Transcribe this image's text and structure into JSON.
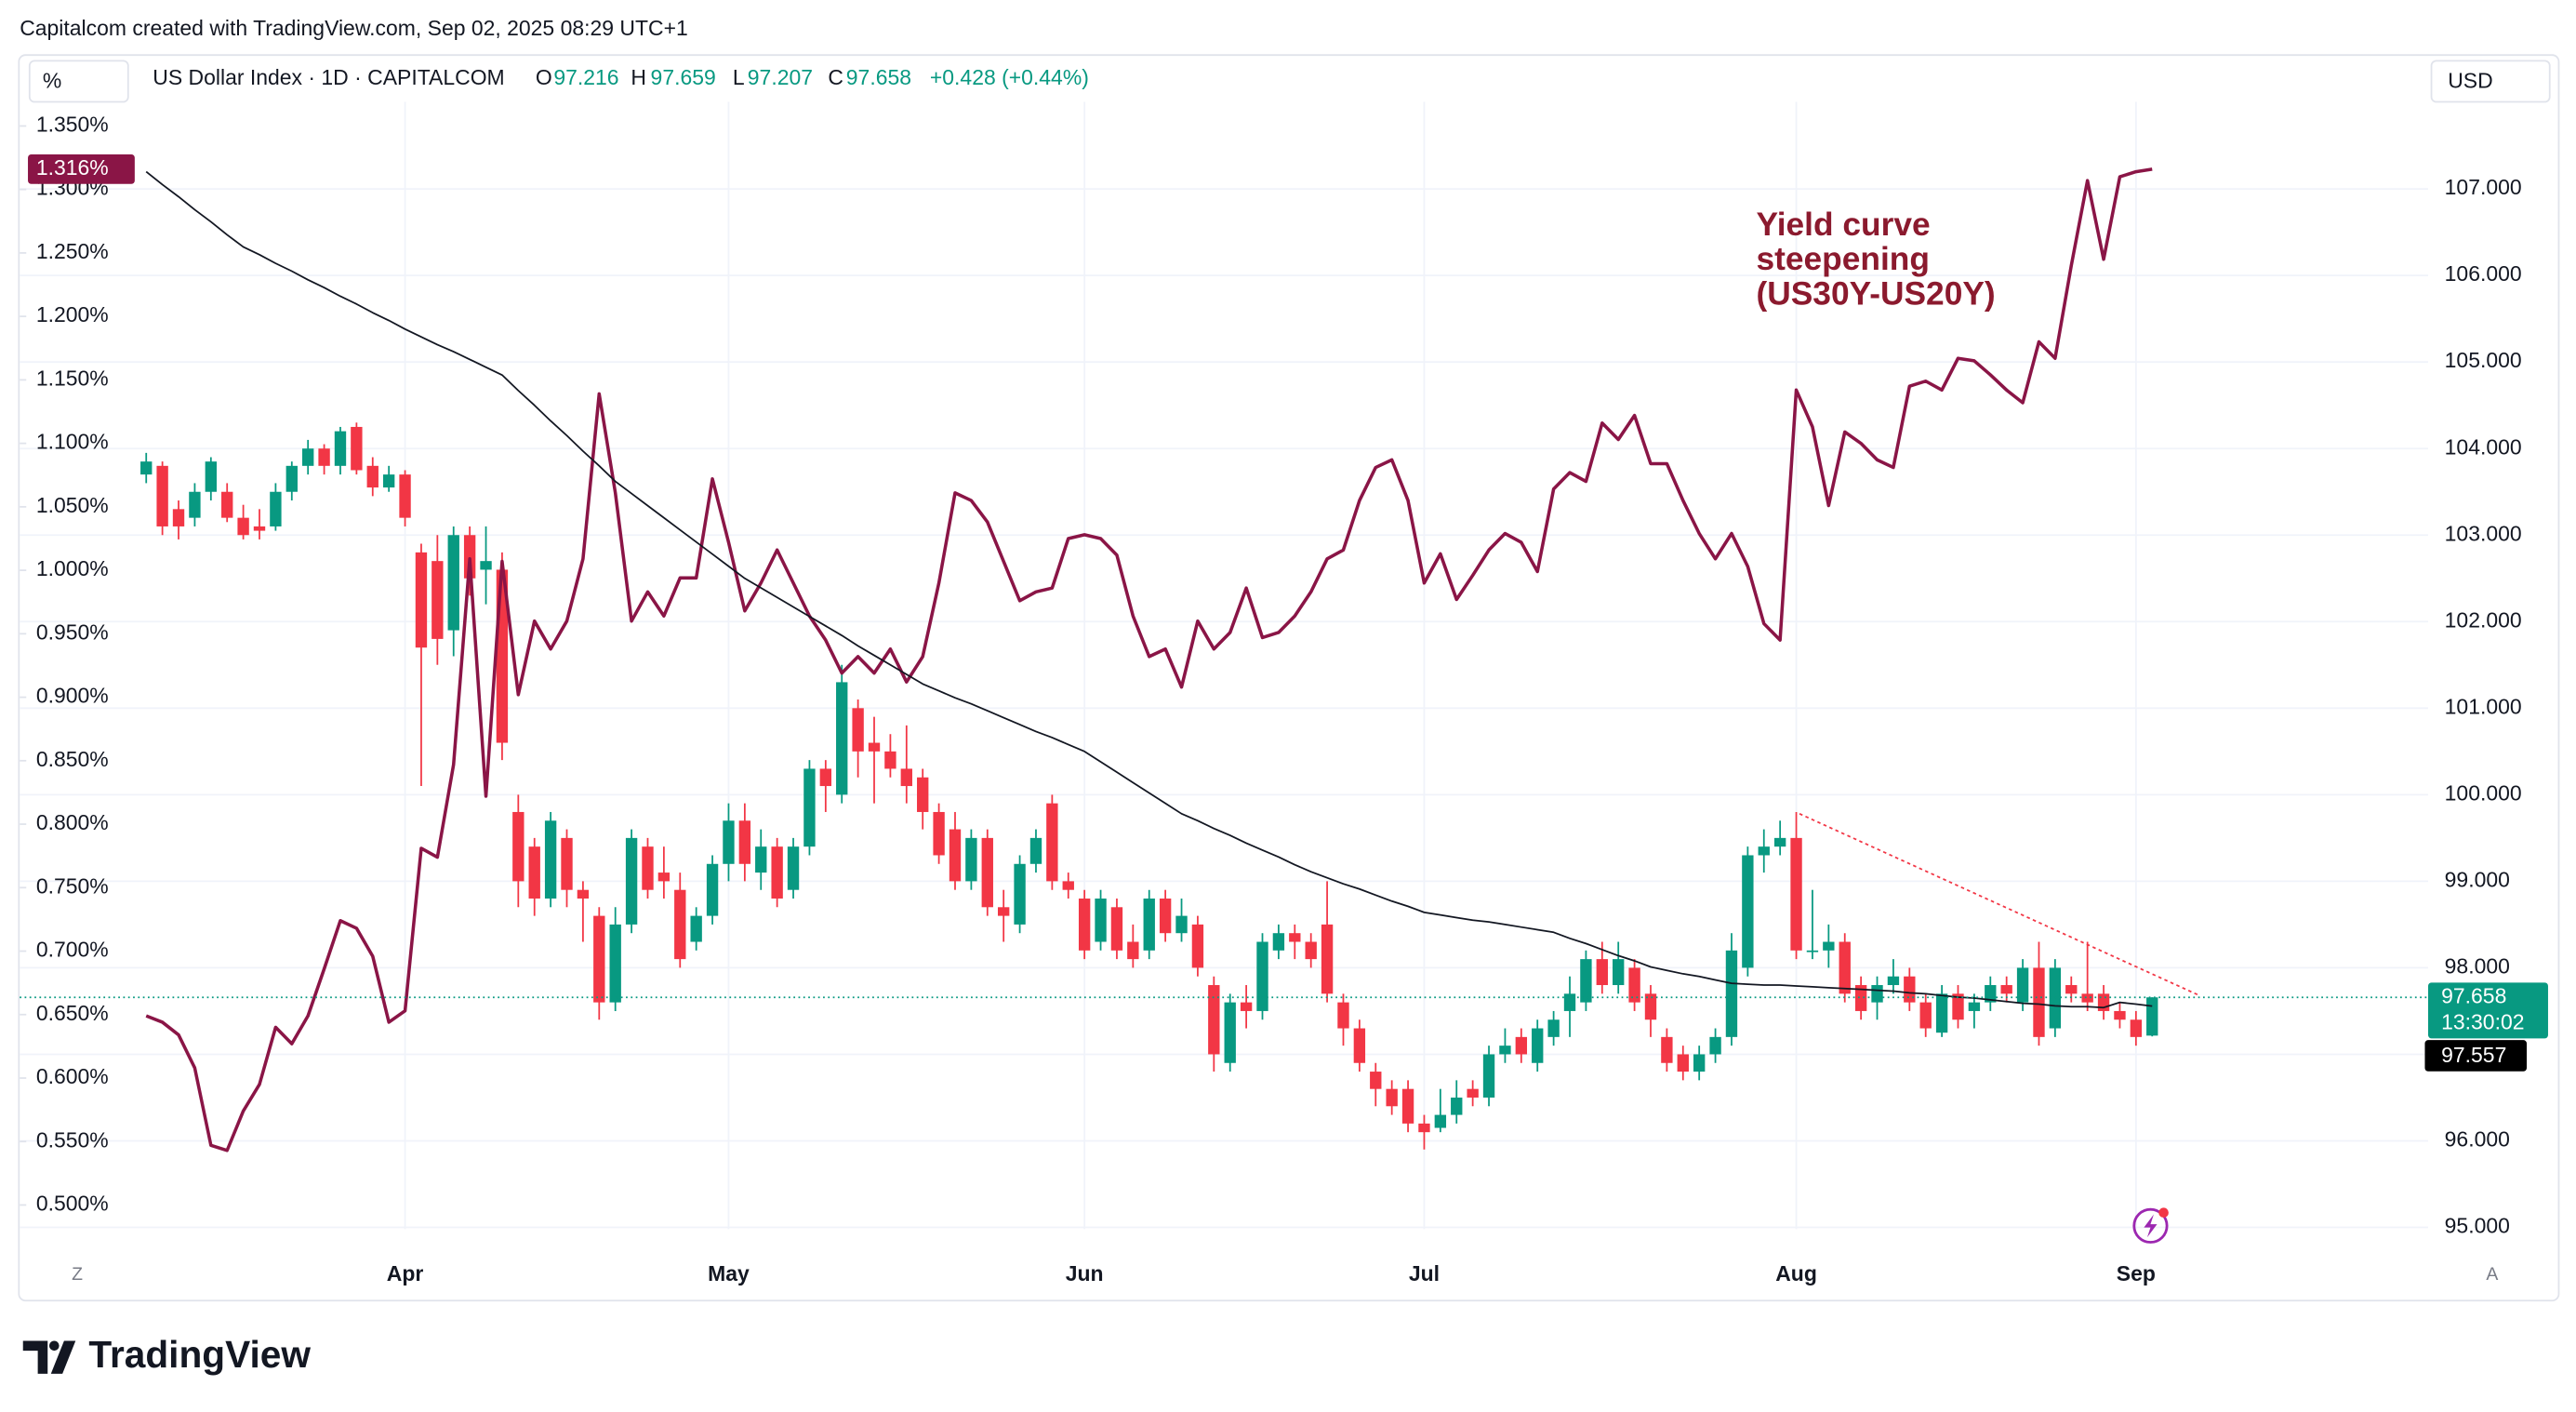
{
  "chart_data": {
    "type": "candlestick",
    "header": "Capitalcom created with TradingView.com, Sep 02, 2025 08:29 UTC+1",
    "symbol": "US Dollar Index · 1D · CAPITALCOM",
    "ohlc_letters": [
      "O",
      "H",
      "L",
      "C"
    ],
    "change_label": "+0.428 (+0.44%)",
    "countdown": "13:30:02",
    "left_unit": "%",
    "right_unit": "USD",
    "corner_labels": [
      "Z",
      "A"
    ],
    "watermark": "TradingView",
    "annotation": [
      "Yield curve",
      "steepening",
      "(US30Y-US20Y)"
    ],
    "annotation_color": "#8b1a2e",
    "up_color": "#089981",
    "down_color": "#f23645",
    "grid": true,
    "xlim": [
      -7.82,
      141.06
    ],
    "xticks": [
      {
        "value": 16,
        "label": "Apr"
      },
      {
        "value": 36,
        "label": "May"
      },
      {
        "value": 58,
        "label": "Jun"
      },
      {
        "value": 79,
        "label": "Jul"
      },
      {
        "value": 102,
        "label": "Aug"
      },
      {
        "value": 123,
        "label": "Sep"
      }
    ],
    "ylim": [
      94.98,
      108.006
    ],
    "yticks": [
      {
        "value": 95,
        "label": "95.000"
      },
      {
        "value": 96,
        "label": "96.000"
      },
      {
        "value": 97,
        "label": "97.000"
      },
      {
        "value": 98,
        "label": "98.000"
      },
      {
        "value": 99,
        "label": "99.000"
      },
      {
        "value": 100,
        "label": "100.000"
      },
      {
        "value": 101,
        "label": "101.000"
      },
      {
        "value": 102,
        "label": "102.000"
      },
      {
        "value": 103,
        "label": "103.000"
      },
      {
        "value": 104,
        "label": "104.000"
      },
      {
        "value": 105,
        "label": "105.000"
      },
      {
        "value": 106,
        "label": "106.000"
      },
      {
        "value": 107,
        "label": "107.000"
      }
    ],
    "y2lim": [
      0.481,
      1.369
    ],
    "y2ticks": [
      {
        "value": 0.5,
        "label": "0.500%"
      },
      {
        "value": 0.55,
        "label": "0.550%"
      },
      {
        "value": 0.6,
        "label": "0.600%"
      },
      {
        "value": 0.65,
        "label": "0.650%"
      },
      {
        "value": 0.7,
        "label": "0.700%"
      },
      {
        "value": 0.75,
        "label": "0.750%"
      },
      {
        "value": 0.8,
        "label": "0.800%"
      },
      {
        "value": 0.85,
        "label": "0.850%"
      },
      {
        "value": 0.9,
        "label": "0.900%"
      },
      {
        "value": 0.95,
        "label": "0.950%"
      },
      {
        "value": 1.0,
        "label": "1.000%"
      },
      {
        "value": 1.05,
        "label": "1.050%"
      },
      {
        "value": 1.1,
        "label": "1.100%"
      },
      {
        "value": 1.15,
        "label": "1.150%"
      },
      {
        "value": 1.2,
        "label": "1.200%"
      },
      {
        "value": 1.25,
        "label": "1.250%"
      },
      {
        "value": 1.3,
        "label": "1.300%"
      },
      {
        "value": 1.35,
        "label": "1.350%"
      }
    ],
    "candles": [
      [
        103.7,
        103.95,
        103.6,
        103.85
      ],
      [
        103.8,
        103.85,
        103.0,
        103.1
      ],
      [
        103.3,
        103.4,
        102.95,
        103.1
      ],
      [
        103.2,
        103.6,
        103.1,
        103.5
      ],
      [
        103.5,
        103.9,
        103.4,
        103.85
      ],
      [
        103.5,
        103.6,
        103.15,
        103.2
      ],
      [
        103.2,
        103.35,
        102.95,
        103.0
      ],
      [
        103.1,
        103.3,
        102.95,
        103.05
      ],
      [
        103.1,
        103.6,
        103.05,
        103.5
      ],
      [
        103.5,
        103.85,
        103.4,
        103.8
      ],
      [
        103.8,
        104.1,
        103.7,
        104.0
      ],
      [
        104.0,
        104.05,
        103.7,
        103.8
      ],
      [
        103.8,
        104.25,
        103.7,
        104.2
      ],
      [
        104.25,
        104.3,
        103.7,
        103.75
      ],
      [
        103.8,
        103.9,
        103.45,
        103.55
      ],
      [
        103.55,
        103.8,
        103.5,
        103.7
      ],
      [
        103.7,
        103.75,
        103.1,
        103.2
      ],
      [
        102.8,
        102.9,
        100.1,
        101.7
      ],
      [
        102.7,
        103.0,
        101.5,
        101.8
      ],
      [
        101.9,
        103.1,
        101.6,
        103.0
      ],
      [
        103.0,
        103.1,
        102.3,
        102.5
      ],
      [
        102.6,
        103.1,
        102.2,
        102.7
      ],
      [
        102.6,
        102.8,
        100.4,
        100.6
      ],
      [
        99.8,
        100.0,
        98.7,
        99.0
      ],
      [
        99.4,
        99.5,
        98.6,
        98.8
      ],
      [
        98.8,
        99.8,
        98.7,
        99.7
      ],
      [
        99.5,
        99.6,
        98.7,
        98.9
      ],
      [
        98.9,
        99.0,
        98.3,
        98.8
      ],
      [
        98.6,
        98.7,
        97.4,
        97.6
      ],
      [
        97.6,
        98.7,
        97.5,
        98.5
      ],
      [
        98.5,
        99.6,
        98.4,
        99.5
      ],
      [
        99.4,
        99.5,
        98.8,
        98.9
      ],
      [
        99.1,
        99.4,
        98.8,
        99.0
      ],
      [
        98.9,
        99.1,
        98.0,
        98.1
      ],
      [
        98.3,
        98.7,
        98.2,
        98.6
      ],
      [
        98.6,
        99.3,
        98.5,
        99.2
      ],
      [
        99.2,
        99.9,
        99.0,
        99.7
      ],
      [
        99.7,
        99.9,
        99.0,
        99.2
      ],
      [
        99.1,
        99.6,
        98.9,
        99.4
      ],
      [
        99.4,
        99.5,
        98.7,
        98.8
      ],
      [
        98.9,
        99.5,
        98.8,
        99.4
      ],
      [
        99.4,
        100.4,
        99.3,
        100.3
      ],
      [
        100.3,
        100.4,
        99.8,
        100.1
      ],
      [
        100.0,
        101.5,
        99.9,
        101.3
      ],
      [
        101.0,
        101.1,
        100.2,
        100.5
      ],
      [
        100.6,
        100.9,
        99.9,
        100.5
      ],
      [
        100.5,
        100.7,
        100.2,
        100.3
      ],
      [
        100.3,
        100.8,
        99.9,
        100.1
      ],
      [
        100.2,
        100.3,
        99.6,
        99.8
      ],
      [
        99.8,
        99.9,
        99.2,
        99.3
      ],
      [
        99.6,
        99.8,
        98.9,
        99.0
      ],
      [
        99.0,
        99.6,
        98.9,
        99.5
      ],
      [
        99.5,
        99.6,
        98.6,
        98.7
      ],
      [
        98.7,
        98.9,
        98.3,
        98.6
      ],
      [
        98.5,
        99.3,
        98.4,
        99.2
      ],
      [
        99.2,
        99.6,
        99.1,
        99.5
      ],
      [
        99.9,
        100.0,
        98.9,
        99.0
      ],
      [
        99.0,
        99.1,
        98.8,
        98.9
      ],
      [
        98.8,
        98.9,
        98.1,
        98.2
      ],
      [
        98.3,
        98.9,
        98.2,
        98.8
      ],
      [
        98.7,
        98.8,
        98.1,
        98.2
      ],
      [
        98.3,
        98.5,
        98.0,
        98.1
      ],
      [
        98.2,
        98.9,
        98.1,
        98.8
      ],
      [
        98.8,
        98.9,
        98.3,
        98.4
      ],
      [
        98.4,
        98.8,
        98.3,
        98.6
      ],
      [
        98.5,
        98.6,
        97.9,
        98.0
      ],
      [
        97.8,
        97.9,
        96.8,
        97.0
      ],
      [
        96.9,
        97.7,
        96.8,
        97.6
      ],
      [
        97.6,
        97.8,
        97.3,
        97.5
      ],
      [
        97.5,
        98.4,
        97.4,
        98.3
      ],
      [
        98.2,
        98.5,
        98.1,
        98.4
      ],
      [
        98.4,
        98.5,
        98.1,
        98.3
      ],
      [
        98.3,
        98.4,
        98.0,
        98.1
      ],
      [
        98.5,
        99.0,
        97.6,
        97.7
      ],
      [
        97.6,
        97.7,
        97.1,
        97.3
      ],
      [
        97.3,
        97.4,
        96.8,
        96.9
      ],
      [
        96.8,
        96.9,
        96.4,
        96.6
      ],
      [
        96.6,
        96.7,
        96.3,
        96.4
      ],
      [
        96.6,
        96.7,
        96.1,
        96.2
      ],
      [
        96.2,
        96.3,
        95.9,
        96.1
      ],
      [
        96.15,
        96.6,
        96.1,
        96.3
      ],
      [
        96.3,
        96.7,
        96.2,
        96.5
      ],
      [
        96.6,
        96.7,
        96.4,
        96.5
      ],
      [
        96.5,
        97.1,
        96.4,
        97.0
      ],
      [
        97.0,
        97.3,
        96.9,
        97.1
      ],
      [
        97.2,
        97.3,
        96.9,
        97.0
      ],
      [
        96.9,
        97.4,
        96.8,
        97.3
      ],
      [
        97.2,
        97.5,
        97.1,
        97.4
      ],
      [
        97.5,
        97.9,
        97.2,
        97.7
      ],
      [
        97.6,
        98.2,
        97.5,
        98.1
      ],
      [
        98.1,
        98.3,
        97.7,
        97.8
      ],
      [
        97.8,
        98.3,
        97.7,
        98.1
      ],
      [
        98.0,
        98.1,
        97.5,
        97.6
      ],
      [
        97.7,
        97.8,
        97.2,
        97.4
      ],
      [
        97.2,
        97.3,
        96.8,
        96.9
      ],
      [
        97.0,
        97.1,
        96.7,
        96.8
      ],
      [
        96.8,
        97.1,
        96.7,
        97.0
      ],
      [
        97.0,
        97.3,
        96.9,
        97.2
      ],
      [
        97.2,
        98.4,
        97.1,
        98.2
      ],
      [
        98.0,
        99.4,
        97.9,
        99.3
      ],
      [
        99.3,
        99.6,
        99.1,
        99.4
      ],
      [
        99.4,
        99.7,
        99.3,
        99.5
      ],
      [
        99.5,
        99.8,
        98.1,
        98.2
      ],
      [
        98.2,
        98.9,
        98.1,
        98.2
      ],
      [
        98.2,
        98.5,
        98.0,
        98.3
      ],
      [
        98.3,
        98.4,
        97.6,
        97.7
      ],
      [
        97.8,
        97.9,
        97.4,
        97.5
      ],
      [
        97.6,
        97.9,
        97.4,
        97.8
      ],
      [
        97.8,
        98.1,
        97.7,
        97.9
      ],
      [
        97.9,
        98.0,
        97.5,
        97.6
      ],
      [
        97.6,
        97.7,
        97.2,
        97.3
      ],
      [
        97.25,
        97.8,
        97.2,
        97.7
      ],
      [
        97.7,
        97.8,
        97.3,
        97.4
      ],
      [
        97.5,
        97.7,
        97.3,
        97.6
      ],
      [
        97.6,
        97.9,
        97.5,
        97.8
      ],
      [
        97.8,
        97.9,
        97.6,
        97.7
      ],
      [
        97.6,
        98.1,
        97.5,
        98.0
      ],
      [
        98.0,
        98.3,
        97.1,
        97.2
      ],
      [
        97.3,
        98.1,
        97.2,
        98.0
      ],
      [
        97.8,
        97.9,
        97.6,
        97.7
      ],
      [
        97.7,
        98.3,
        97.5,
        97.6
      ],
      [
        97.7,
        97.8,
        97.4,
        97.5
      ],
      [
        97.5,
        97.6,
        97.3,
        97.4
      ],
      [
        97.4,
        97.5,
        97.1,
        97.2
      ],
      [
        97.216,
        97.659,
        97.207,
        97.658
      ]
    ],
    "series": [
      {
        "axis": "y2",
        "color": "#8a1546",
        "width": 2,
        "badge_label": "1.316%",
        "values": [
          0.649,
          0.644,
          0.634,
          0.608,
          0.547,
          0.543,
          0.574,
          0.595,
          0.64,
          0.627,
          0.649,
          0.686,
          0.724,
          0.718,
          0.696,
          0.644,
          0.653,
          0.781,
          0.774,
          0.847,
          1.009,
          0.822,
          1.007,
          0.902,
          0.96,
          0.938,
          0.96,
          1.009,
          1.139,
          1.061,
          0.96,
          0.983,
          0.964,
          0.994,
          0.994,
          1.072,
          1.022,
          0.968,
          0.99,
          1.016,
          0.99,
          0.964,
          0.945,
          0.919,
          0.932,
          0.919,
          0.938,
          0.912,
          0.932,
          0.99,
          1.061,
          1.055,
          1.038,
          1.007,
          0.976,
          0.983,
          0.986,
          1.025,
          1.028,
          1.025,
          1.012,
          0.964,
          0.932,
          0.938,
          0.908,
          0.96,
          0.938,
          0.951,
          0.986,
          0.947,
          0.951,
          0.964,
          0.983,
          1.009,
          1.016,
          1.055,
          1.081,
          1.087,
          1.055,
          0.99,
          1.013,
          0.977,
          0.996,
          1.016,
          1.029,
          1.022,
          0.999,
          1.064,
          1.077,
          1.07,
          1.116,
          1.103,
          1.122,
          1.084,
          1.084,
          1.055,
          1.029,
          1.009,
          1.029,
          1.003,
          0.958,
          0.945,
          1.142,
          1.113,
          1.051,
          1.109,
          1.1,
          1.087,
          1.081,
          1.145,
          1.149,
          1.142,
          1.167,
          1.165,
          1.154,
          1.142,
          1.132,
          1.18,
          1.167,
          1.24,
          1.307,
          1.245,
          1.31,
          1.314,
          1.316
        ]
      },
      {
        "axis": "y",
        "color": "#131722",
        "width": 1,
        "values": [
          107.2,
          107.05,
          106.91,
          106.76,
          106.62,
          106.47,
          106.33,
          106.24,
          106.14,
          106.05,
          105.95,
          105.86,
          105.76,
          105.67,
          105.57,
          105.48,
          105.38,
          105.29,
          105.2,
          105.12,
          105.03,
          104.94,
          104.85,
          104.67,
          104.5,
          104.32,
          104.15,
          103.97,
          103.8,
          103.62,
          103.48,
          103.34,
          103.2,
          103.06,
          102.92,
          102.78,
          102.64,
          102.5,
          102.39,
          102.28,
          102.17,
          102.06,
          101.95,
          101.84,
          101.72,
          101.61,
          101.5,
          101.39,
          101.28,
          101.2,
          101.12,
          101.05,
          100.97,
          100.89,
          100.81,
          100.73,
          100.66,
          100.58,
          100.5,
          100.38,
          100.26,
          100.14,
          100.02,
          99.9,
          99.78,
          99.7,
          99.61,
          99.53,
          99.44,
          99.36,
          99.28,
          99.19,
          99.11,
          99.04,
          98.97,
          98.91,
          98.84,
          98.77,
          98.71,
          98.64,
          98.61,
          98.58,
          98.55,
          98.53,
          98.5,
          98.47,
          98.44,
          98.41,
          98.34,
          98.28,
          98.21,
          98.14,
          98.08,
          98.01,
          97.97,
          97.93,
          97.9,
          97.86,
          97.82,
          97.81,
          97.8,
          97.8,
          97.79,
          97.78,
          97.77,
          97.76,
          97.75,
          97.74,
          97.73,
          97.71,
          97.7,
          97.68,
          97.66,
          97.65,
          97.63,
          97.61,
          97.59,
          97.58,
          97.56,
          97.55,
          97.55,
          97.54,
          97.6,
          97.58,
          97.557
        ]
      }
    ],
    "trendline": {
      "color": "#f23645",
      "x": [
        102.2,
        126.8
      ],
      "values": [
        99.78,
        97.69
      ]
    }
  }
}
